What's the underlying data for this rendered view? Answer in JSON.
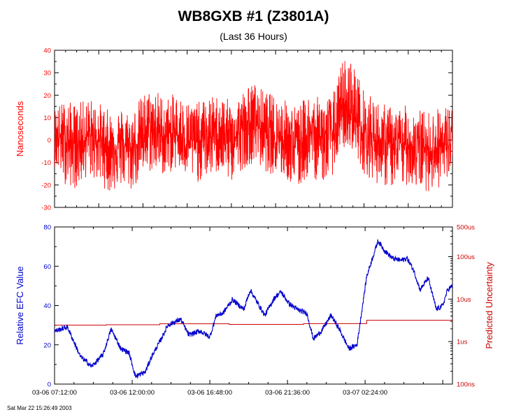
{
  "title": "WB8GXB  #1 (Z3801A)",
  "subtitle": "(Last 36 Hours)",
  "timestamp": "Sat Mar 22 15:26:49 2003",
  "colors": {
    "offset": "#ff0000",
    "efc": "#0000cc",
    "uncertainty": "#cc0000",
    "axis": "#000000"
  },
  "chart_data": [
    {
      "type": "line",
      "ylabel": "Nanoseconds",
      "ylim": [
        -30,
        40
      ],
      "yticks": [
        -30,
        -20,
        -10,
        0,
        10,
        20,
        30,
        40
      ],
      "xlim_hours": [
        0,
        36
      ],
      "series": [
        {
          "style": "noise",
          "x_hours": [
            0,
            1,
            2,
            3,
            4,
            5,
            6,
            7,
            8,
            9,
            10,
            11,
            12,
            13,
            14,
            15,
            16,
            17,
            18,
            19,
            20,
            21,
            22,
            23,
            24,
            25,
            25.5,
            26,
            27,
            28,
            29,
            30,
            31,
            32,
            33,
            34,
            35,
            36
          ],
          "center": [
            2,
            0,
            -2,
            2,
            0,
            -3,
            -2,
            -4,
            2,
            4,
            1,
            3,
            0,
            -1,
            1,
            3,
            -1,
            5,
            8,
            4,
            2,
            0,
            -3,
            3,
            1,
            2,
            5,
            10,
            12,
            3,
            0,
            -2,
            -3,
            -2,
            -3,
            -4,
            -3,
            -2
          ],
          "range_min": [
            -12,
            -20,
            -22,
            -16,
            -19,
            -24,
            -21,
            -23,
            -16,
            -14,
            -16,
            -13,
            -17,
            -19,
            -16,
            -15,
            -19,
            -13,
            -10,
            -14,
            -16,
            -18,
            -23,
            -16,
            -19,
            -18,
            -10,
            -4,
            -4,
            -15,
            -19,
            -21,
            -22,
            -20,
            -22,
            -23,
            -21,
            -19
          ],
          "range_max": [
            15,
            18,
            16,
            19,
            17,
            13,
            15,
            13,
            21,
            24,
            19,
            21,
            18,
            17,
            19,
            21,
            17,
            22,
            26,
            22,
            20,
            18,
            15,
            21,
            19,
            20,
            24,
            37,
            36,
            22,
            18,
            16,
            14,
            16,
            14,
            13,
            15,
            17
          ]
        }
      ]
    },
    {
      "type": "line",
      "ylabel": "Relative EFC Value",
      "ylabel_right": "Predicted Uncertainty",
      "ylim": [
        0,
        80
      ],
      "yticks": [
        0,
        20,
        40,
        60,
        80
      ],
      "right_log_range": [
        "100ns",
        "500us"
      ],
      "right_ticks": [
        "100ns",
        "1us",
        "10us",
        "100us",
        "500us"
      ],
      "xticks": [
        "03-06 07:12:00",
        "03-06 12:00:00",
        "03-06 16:48:00",
        "03-06 21:36:00",
        "03-07 02:24:00"
      ],
      "xtick_hours": [
        0,
        4.8,
        9.6,
        14.4,
        19.2
      ],
      "xlim_hours": [
        0,
        24.6
      ],
      "series": [
        {
          "style": "efc",
          "x_hours": [
            0,
            0.8,
            1.6,
            2.3,
            3.0,
            3.5,
            4.1,
            4.6,
            5.0,
            5.6,
            6.0,
            6.6,
            7.0,
            7.8,
            8.3,
            9.0,
            9.6,
            10.0,
            10.4,
            11.0,
            11.7,
            12.1,
            12.5,
            13.0,
            13.6,
            14.0,
            14.5,
            15.0,
            15.6,
            16.0,
            16.5,
            17.1,
            17.6,
            18.2,
            18.7,
            19.3,
            20.0,
            20.4,
            20.9,
            21.4,
            21.8,
            22.2,
            22.6,
            23.1,
            23.6,
            24.0,
            24.3,
            24.6
          ],
          "values": [
            27,
            29,
            14,
            9,
            15,
            28,
            18,
            16,
            4,
            6,
            14,
            23,
            30,
            33,
            25,
            27,
            24,
            35,
            36,
            43,
            38,
            48,
            42,
            35,
            44,
            47,
            41,
            38,
            36,
            23,
            27,
            35,
            28,
            18,
            20,
            55,
            73,
            68,
            64,
            63,
            64,
            58,
            48,
            54,
            38,
            40,
            48,
            50
          ]
        },
        {
          "style": "uncertainty",
          "x_hours": [
            0,
            3.2,
            3.2,
            6.5,
            6.5,
            10.8,
            10.8,
            15.4,
            15.4,
            19.3,
            19.3,
            24.6
          ],
          "values": [
            30.0,
            30.0,
            30.2,
            30.2,
            30.7,
            30.7,
            30.4,
            30.4,
            30.8,
            30.8,
            32.5,
            32.5
          ]
        }
      ]
    }
  ]
}
